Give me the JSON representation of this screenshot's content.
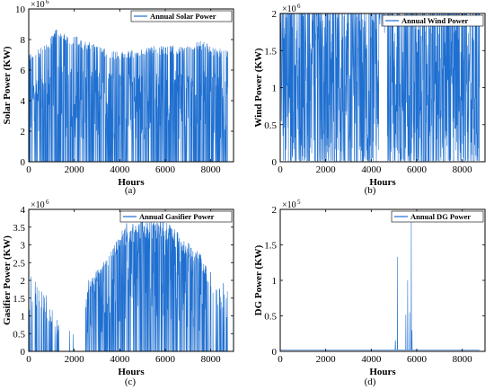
{
  "colors": {
    "series": "#1f6fd0",
    "axis": "#000000"
  },
  "chart_data": [
    {
      "id": "solar",
      "type": "line",
      "caption": "(a)",
      "legend": "Annual Solar Power",
      "xlabel": "Hours",
      "ylabel": "Solar Power (KW)",
      "y_multiplier": "×10",
      "y_exponent": "6",
      "xlim": [
        0,
        9000
      ],
      "ylim": [
        0,
        10
      ],
      "xticks": [
        "0",
        "2000",
        "4000",
        "6000",
        "8000"
      ],
      "yticks": [
        "0",
        "2",
        "4",
        "6",
        "8",
        "10"
      ],
      "x_ticks_values": [
        0,
        2000,
        4000,
        6000,
        8000
      ],
      "y_ticks_values": [
        0,
        2,
        4,
        6,
        8,
        10
      ],
      "envelope": [
        [
          0,
          7.1
        ],
        [
          500,
          7.4
        ],
        [
          1000,
          8.2
        ],
        [
          1200,
          8.8
        ],
        [
          1500,
          8.4
        ],
        [
          2000,
          8.3
        ],
        [
          2500,
          7.9
        ],
        [
          3000,
          7.7
        ],
        [
          3500,
          7.4
        ],
        [
          4000,
          7.2
        ],
        [
          4500,
          7.3
        ],
        [
          5000,
          7.4
        ],
        [
          5500,
          7.6
        ],
        [
          6000,
          7.6
        ],
        [
          6500,
          7.6
        ],
        [
          7000,
          7.6
        ],
        [
          7500,
          8.0
        ],
        [
          8000,
          7.6
        ],
        [
          8760,
          7.3
        ]
      ],
      "floor": [
        [
          0,
          4.5
        ],
        [
          2000,
          5.0
        ],
        [
          4000,
          4.8
        ],
        [
          6000,
          5.0
        ],
        [
          8760,
          4.6
        ]
      ],
      "nighttime_zero": true
    },
    {
      "id": "wind",
      "type": "line",
      "caption": "(b)",
      "legend": "Annual Wind Power",
      "xlabel": "Hours",
      "ylabel": "Wind Power (KW)",
      "y_multiplier": "×10",
      "y_exponent": "6",
      "xlim": [
        0,
        9000
      ],
      "ylim": [
        0,
        2
      ],
      "xticks": [
        "0",
        "2000",
        "4000",
        "6000",
        "8000"
      ],
      "yticks": [
        "0",
        "0.5",
        "1",
        "1.5",
        "2"
      ],
      "x_ticks_values": [
        0,
        2000,
        4000,
        6000,
        8000
      ],
      "y_ticks_values": [
        0,
        0.5,
        1,
        1.5,
        2
      ],
      "saturation": 2,
      "gaps": [
        [
          4350,
          4700
        ]
      ]
    },
    {
      "id": "gasifier",
      "type": "line",
      "caption": "(c)",
      "legend": "Annual Gasifier Power",
      "xlabel": "Hours",
      "ylabel": "Gasifier Power (KW)",
      "y_multiplier": "×10",
      "y_exponent": "6",
      "xlim": [
        0,
        9000
      ],
      "ylim": [
        0,
        4
      ],
      "xticks": [
        "0",
        "2000",
        "4000",
        "6000",
        "8000"
      ],
      "yticks": [
        "0",
        "0.5",
        "1",
        "1.5",
        "2",
        "2.5",
        "3",
        "3.5",
        "4"
      ],
      "x_ticks_values": [
        0,
        2000,
        4000,
        6000,
        8000
      ],
      "y_ticks_values": [
        0,
        0.5,
        1,
        1.5,
        2,
        2.5,
        3,
        3.5,
        4
      ],
      "envelope": [
        [
          0,
          2.2
        ],
        [
          300,
          2.0
        ],
        [
          700,
          1.7
        ],
        [
          1200,
          1.0
        ],
        [
          1600,
          0.2
        ],
        [
          2300,
          0.3
        ],
        [
          2600,
          2.0
        ],
        [
          3000,
          2.3
        ],
        [
          3500,
          2.7
        ],
        [
          4000,
          3.4
        ],
        [
          4500,
          3.6
        ],
        [
          5000,
          3.7
        ],
        [
          5500,
          3.7
        ],
        [
          6000,
          3.7
        ],
        [
          6500,
          3.4
        ],
        [
          7000,
          3.1
        ],
        [
          7500,
          2.8
        ],
        [
          8000,
          2.3
        ],
        [
          8760,
          1.8
        ]
      ],
      "spikes": [
        [
          4300,
          3.6
        ],
        [
          5000,
          3.9
        ],
        [
          5900,
          3.9
        ]
      ],
      "sparse_ranges": [
        [
          0,
          1400
        ],
        [
          7800,
          8760
        ]
      ],
      "empty_ranges": [
        [
          1400,
          2500
        ]
      ]
    },
    {
      "id": "dg",
      "type": "line",
      "caption": "(d)",
      "legend": "Annual DG Power",
      "xlabel": "Hours",
      "ylabel": "DG Power (KW)",
      "y_multiplier": "×10",
      "y_exponent": "5",
      "xlim": [
        0,
        9000
      ],
      "ylim": [
        0,
        2
      ],
      "xticks": [
        "0",
        "2000",
        "4000",
        "6000",
        "8000"
      ],
      "yticks": [
        "0",
        "0.5",
        "1",
        "1.5",
        "2"
      ],
      "x_ticks_values": [
        0,
        2000,
        4000,
        6000,
        8000
      ],
      "y_ticks_values": [
        0,
        0.5,
        1,
        1.5,
        2
      ],
      "spikes": [
        [
          5060,
          0.15
        ],
        [
          5150,
          1.33
        ],
        [
          5520,
          0.52
        ],
        [
          5600,
          1.0
        ],
        [
          5690,
          0.55
        ],
        [
          5760,
          1.88
        ],
        [
          5790,
          0.3
        ]
      ],
      "baseline": 0.02
    }
  ]
}
